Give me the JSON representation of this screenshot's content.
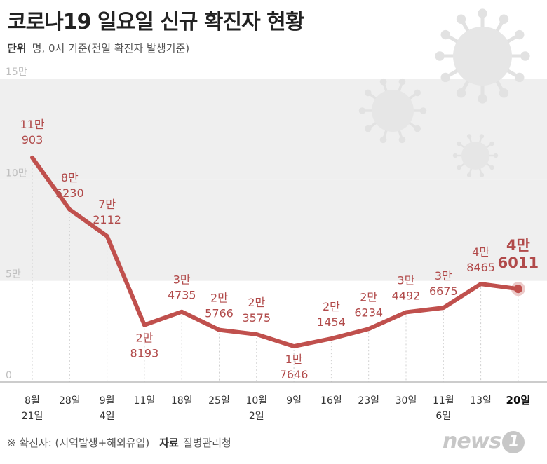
{
  "header": {
    "title": "코로나19 일요일 신규 확진자 현황",
    "unit_label": "단위",
    "unit_text": "명, 0시 기준(전일 확진자 발생기준)"
  },
  "footer": {
    "note": "※ 확진자: (지역발생+해외유입)",
    "source_label": "자료",
    "source": "질병관리청",
    "logo_text": "news",
    "logo_digit": "1"
  },
  "colors": {
    "line": "#c0504d",
    "label": "#b14a4a",
    "band": "#efefef"
  },
  "icons": [
    "virus-icon"
  ],
  "chart_data": {
    "type": "line",
    "title": "코로나19 일요일 신규 확진자 현황",
    "xlabel": "",
    "ylabel": "",
    "ylim": [
      0,
      150000
    ],
    "yticks": [
      {
        "value": 0,
        "label": "0"
      },
      {
        "value": 50000,
        "label": "5만"
      },
      {
        "value": 100000,
        "label": "10만"
      },
      {
        "value": 150000,
        "label": "15만"
      }
    ],
    "grid": true,
    "categories": [
      [
        "8월",
        "21일"
      ],
      [
        "28일"
      ],
      [
        "9월",
        "4일"
      ],
      [
        "11일"
      ],
      [
        "18일"
      ],
      [
        "25일"
      ],
      [
        "10월",
        "2일"
      ],
      [
        "9일"
      ],
      [
        "16일"
      ],
      [
        "23일"
      ],
      [
        "30일"
      ],
      [
        "11월",
        "6일"
      ],
      [
        "13일"
      ],
      [
        "20일"
      ]
    ],
    "values": [
      110903,
      85230,
      72112,
      28193,
      34735,
      25766,
      23575,
      17646,
      21454,
      26234,
      34492,
      36675,
      48465,
      46011
    ],
    "data_labels": [
      [
        "11만",
        "903"
      ],
      [
        "8만",
        "5230"
      ],
      [
        "7만",
        "2112"
      ],
      [
        "2만",
        "8193"
      ],
      [
        "3만",
        "4735"
      ],
      [
        "2만",
        "5766"
      ],
      [
        "2만",
        "3575"
      ],
      [
        "1만",
        "7646"
      ],
      [
        "2만",
        "1454"
      ],
      [
        "2만",
        "6234"
      ],
      [
        "3만",
        "4492"
      ],
      [
        "3만",
        "6675"
      ],
      [
        "4만",
        "8465"
      ],
      [
        "4만",
        "6011"
      ]
    ]
  }
}
